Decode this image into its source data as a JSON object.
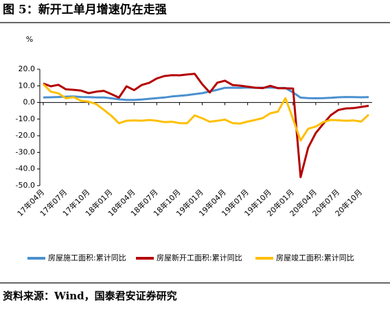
{
  "chart_data": {
    "type": "line",
    "title": "图 5：新开工单月增速仍在走强",
    "y_unit": "%",
    "source": "资料来源：Wind，国泰君安证券研究",
    "categories": [
      "17年04月",
      null,
      null,
      "17年07月",
      null,
      null,
      "17年10月",
      null,
      null,
      "18年01月",
      null,
      null,
      "18年04月",
      null,
      null,
      "18年07月",
      null,
      null,
      "18年10月",
      null,
      null,
      "19年01月",
      null,
      null,
      "19年04月",
      null,
      null,
      "19年07月",
      null,
      null,
      "19年10月",
      null,
      null,
      "20年01月",
      null,
      null,
      "20年04月",
      null,
      null,
      "20年07月",
      null,
      null,
      "20年10月",
      null
    ],
    "series": [
      {
        "name": "房屋施工面积:累计同比",
        "color": "#4a90d0",
        "values": [
          3.0,
          3.1,
          3.3,
          3.5,
          3.6,
          3.3,
          3.2,
          3.0,
          3.0,
          2.5,
          1.9,
          1.5,
          1.5,
          1.8,
          2.2,
          2.6,
          3.0,
          3.6,
          4.0,
          4.4,
          5.0,
          5.6,
          6.6,
          7.6,
          8.8,
          8.9,
          8.8,
          9.0,
          8.8,
          8.9,
          9.0,
          8.7,
          8.7,
          6.0,
          2.9,
          2.6,
          2.5,
          2.6,
          2.8,
          3.1,
          3.3,
          3.2,
          3.1,
          3.2
        ]
      },
      {
        "name": "房屋新开工面积:累计同比",
        "color": "#b40000",
        "values": [
          11.4,
          9.7,
          10.6,
          7.9,
          7.6,
          7.1,
          5.6,
          6.5,
          7.0,
          5.0,
          2.9,
          9.7,
          7.4,
          10.5,
          11.8,
          14.4,
          15.9,
          16.4,
          16.3,
          16.8,
          17.2,
          11.0,
          6.0,
          11.9,
          13.1,
          10.5,
          10.1,
          9.5,
          8.9,
          8.6,
          10.0,
          8.6,
          8.5,
          8.4,
          -44.9,
          -27.2,
          -18.4,
          -12.8,
          -7.6,
          -4.5,
          -3.6,
          -3.4,
          -2.7,
          -2.0
        ]
      },
      {
        "name": "房屋竣工面积:累计同比",
        "color": "#ffbf00",
        "values": [
          11.0,
          6.5,
          5.5,
          2.5,
          3.2,
          1.0,
          0.5,
          -1.0,
          -4.4,
          -8.0,
          -12.5,
          -11.0,
          -10.8,
          -11.0,
          -10.5,
          -11.0,
          -11.8,
          -11.6,
          -12.4,
          -12.5,
          -7.8,
          -9.5,
          -11.6,
          -11.0,
          -10.3,
          -12.4,
          -12.7,
          -11.5,
          -10.5,
          -9.4,
          -6.5,
          -5.5,
          2.6,
          -10.0,
          -22.9,
          -15.8,
          -14.5,
          -11.8,
          -10.5,
          -10.7,
          -11.0,
          -10.8,
          -11.5,
          -7.3
        ]
      }
    ],
    "ylim": [
      -50,
      20
    ],
    "yticks": [
      {
        "value": -50,
        "label": "-50.0"
      },
      {
        "value": -40,
        "label": "-40.0"
      },
      {
        "value": -30,
        "label": "-30.0"
      },
      {
        "value": -20,
        "label": "-20.0"
      },
      {
        "value": -10,
        "label": "-10.0"
      },
      {
        "value": 0,
        "label": "0.0"
      },
      {
        "value": 10,
        "label": "10.0"
      },
      {
        "value": 20,
        "label": "20.0"
      }
    ],
    "grid": false,
    "legend": "bottom"
  }
}
